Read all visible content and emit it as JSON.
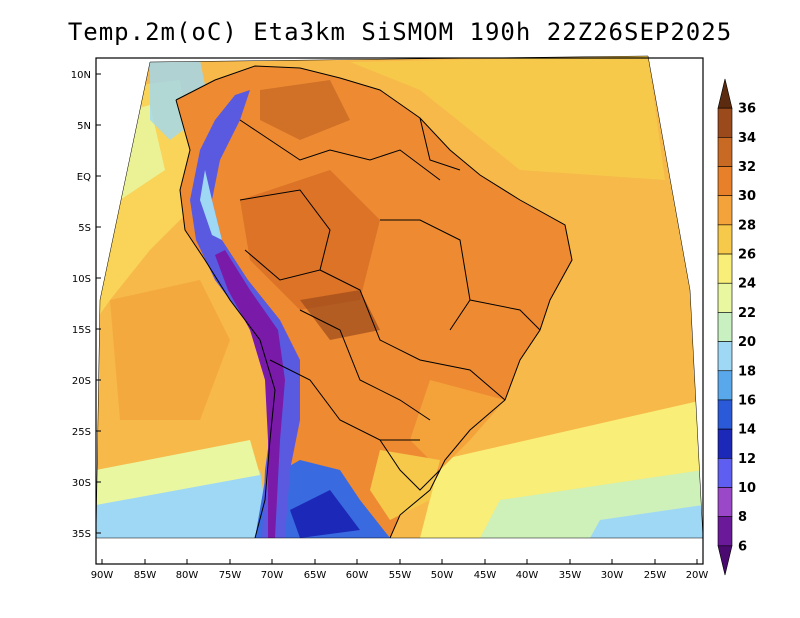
{
  "title": "Temp.2m(oC) Eta3km SiSMOM 190h 22Z26SEP2025",
  "map": {
    "lat_labels": [
      "10N",
      "5N",
      "EQ",
      "5S",
      "10S",
      "15S",
      "20S",
      "25S",
      "30S",
      "35S"
    ],
    "lon_labels": [
      "90W",
      "85W",
      "80W",
      "75W",
      "70W",
      "65W",
      "60W",
      "55W",
      "50W",
      "45W",
      "40W",
      "35W",
      "30W",
      "25W",
      "20W"
    ],
    "ocean_color": "#f6b94a",
    "land_color": "#ee8b32"
  },
  "colorbar": {
    "labels": [
      "36",
      "34",
      "32",
      "30",
      "28",
      "26",
      "24",
      "22",
      "20",
      "18",
      "16",
      "14",
      "12",
      "10",
      "8",
      "6"
    ],
    "colors": [
      "#5c2a0e",
      "#9b4a1c",
      "#c86a24",
      "#e8802a",
      "#f4a23a",
      "#f7c94a",
      "#f9ee78",
      "#e9f7a0",
      "#c9f0c0",
      "#9fd8f4",
      "#5aa8ec",
      "#2a5ad8",
      "#1c28b8",
      "#5e5ef0",
      "#9a48c8",
      "#6a1a98",
      "#4a0a70"
    ]
  }
}
